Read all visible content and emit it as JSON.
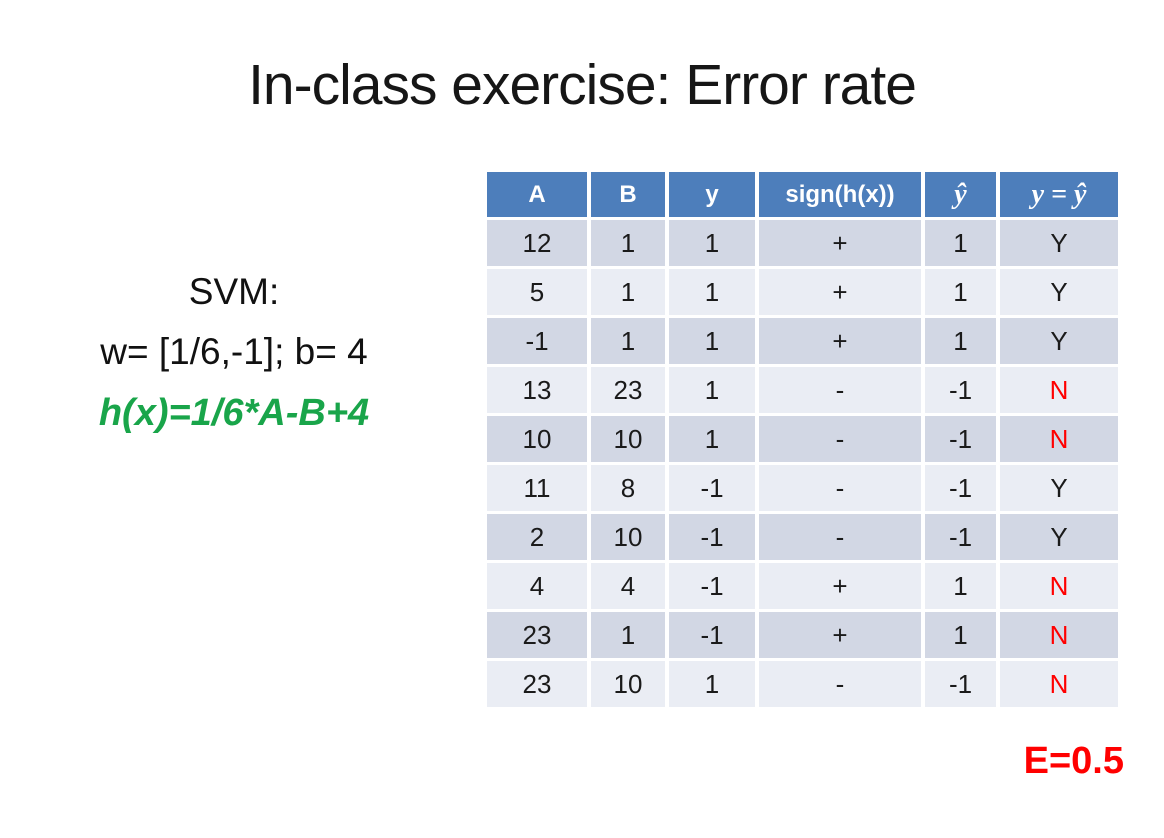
{
  "slide": {
    "title": "In-class exercise: Error rate",
    "left_panel": {
      "line1": "SVM:",
      "line2": "w= [1/6,-1]; b= 4",
      "formula": "h(x)=1/6*A-B+4"
    },
    "error_label": "E=0.5"
  },
  "table": {
    "columns": [
      "A",
      "B",
      "y",
      "sign(h(x))",
      "ŷ",
      "y = ŷ"
    ],
    "rows": [
      [
        "12",
        "1",
        "1",
        "+",
        "1",
        "Y"
      ],
      [
        "5",
        "1",
        "1",
        "+",
        "1",
        "Y"
      ],
      [
        "-1",
        "1",
        "1",
        "+",
        "1",
        "Y"
      ],
      [
        "13",
        "23",
        "1",
        "-",
        "-1",
        "N"
      ],
      [
        "10",
        "10",
        "1",
        "-",
        "-1",
        "N"
      ],
      [
        "11",
        "8",
        "-1",
        "-",
        "-1",
        "Y"
      ],
      [
        "2",
        "10",
        "-1",
        "-",
        "-1",
        "Y"
      ],
      [
        "4",
        "4",
        "-1",
        "+",
        "1",
        "N"
      ],
      [
        "23",
        "1",
        "-1",
        "+",
        "1",
        "N"
      ],
      [
        "23",
        "10",
        "1",
        "-",
        "-1",
        "N"
      ]
    ]
  },
  "colors": {
    "header_blue": "#4D7EBB",
    "band_dark": "#D2D7E4",
    "band_light": "#EAEDF4",
    "error_red": "#FF0000",
    "formula_green": "#19A54A",
    "text_black": "#161616"
  }
}
